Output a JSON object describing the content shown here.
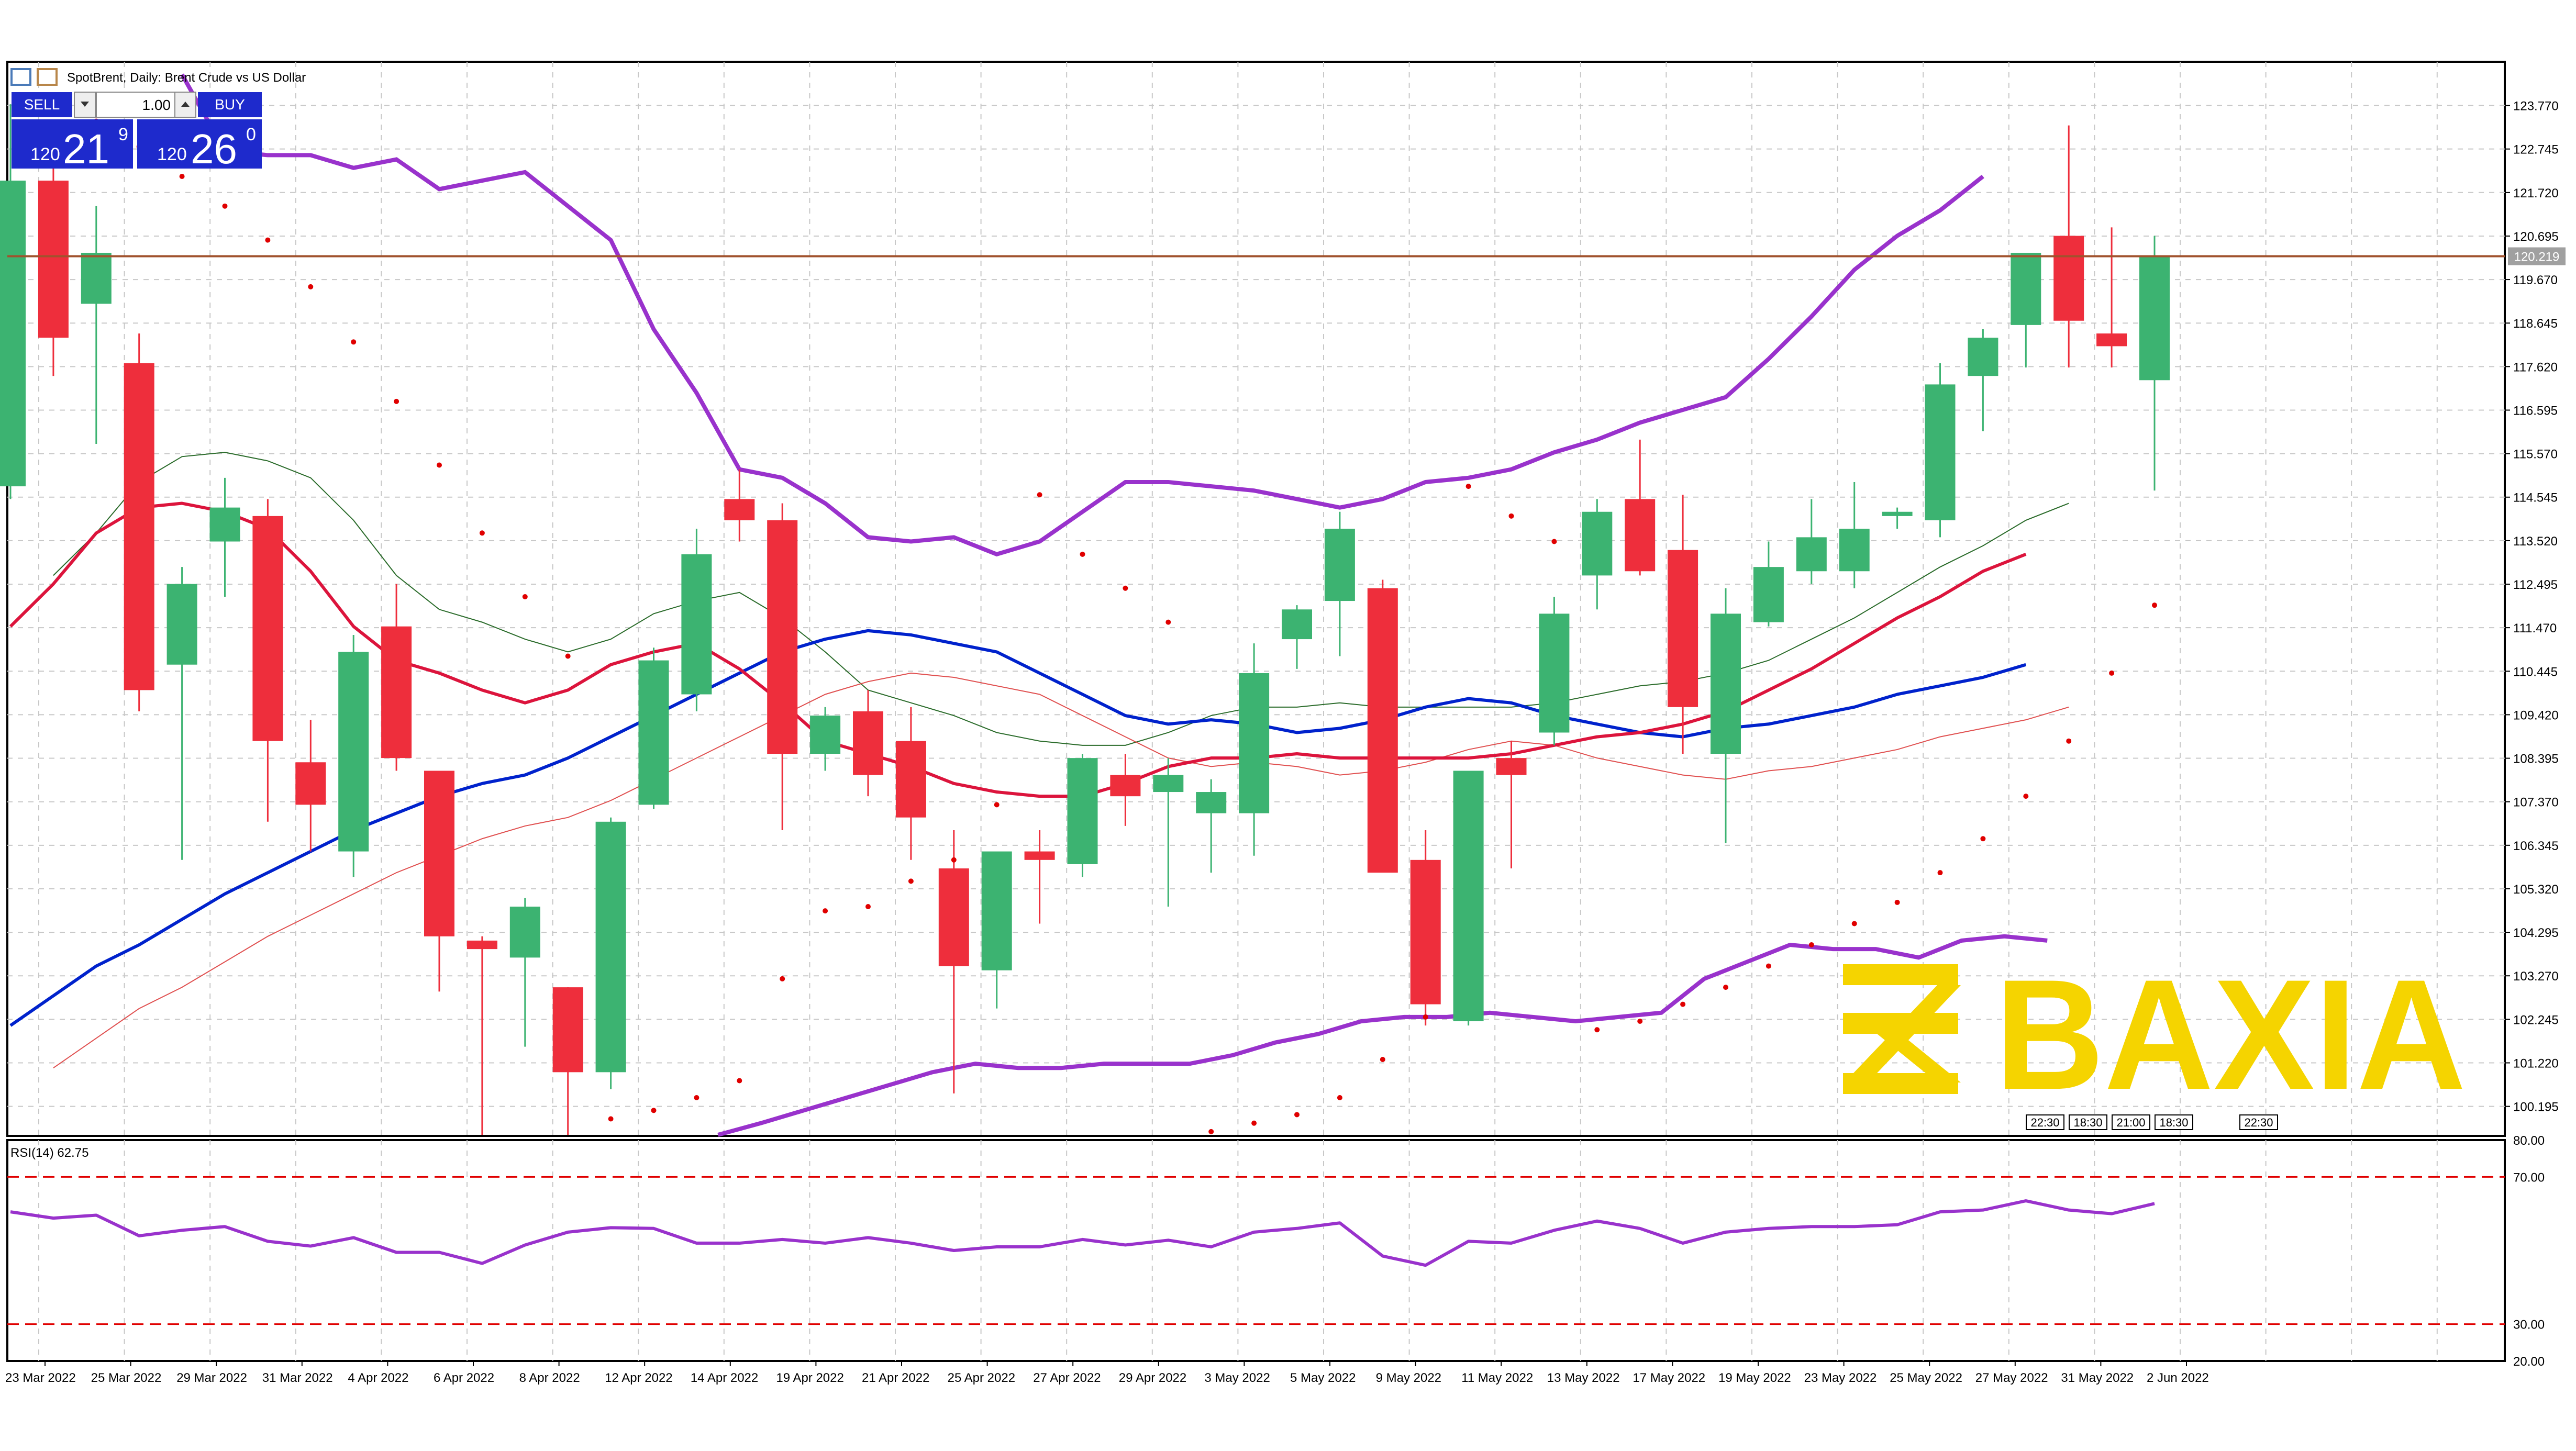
{
  "header": {
    "symbol_title": "SpotBrent, Daily:  Brent Crude vs US Dollar"
  },
  "trade_panel": {
    "sell_label": "SELL",
    "buy_label": "BUY",
    "lot_value": "1.00",
    "sell_price_big": "120",
    "sell_price_main": "21",
    "sell_price_sup": "9",
    "buy_price_big": "120",
    "buy_price_main": "26",
    "buy_price_sup": "0"
  },
  "price_axis": {
    "ticks": [
      "123.770",
      "122.745",
      "121.720",
      "120.695",
      "119.670",
      "118.645",
      "117.620",
      "116.595",
      "115.570",
      "114.545",
      "113.520",
      "112.495",
      "111.470",
      "110.445",
      "109.420",
      "108.395",
      "107.370",
      "106.345",
      "105.320",
      "104.295",
      "103.270",
      "102.245",
      "101.220",
      "100.195"
    ],
    "current_price_label": "120.219"
  },
  "rsi_panel": {
    "title": "RSI(14) 62.75",
    "ticks": [
      "80.00",
      "70.00",
      "30.00",
      "20.00"
    ]
  },
  "date_axis": {
    "labels": [
      "23 Mar 2022",
      "25 Mar 2022",
      "29 Mar 2022",
      "31 Mar 2022",
      "4 Apr 2022",
      "6 Apr 2022",
      "8 Apr 2022",
      "12 Apr 2022",
      "14 Apr 2022",
      "19 Apr 2022",
      "21 Apr 2022",
      "25 Apr 2022",
      "27 Apr 2022",
      "29 Apr 2022",
      "3 May 2022",
      "5 May 2022",
      "9 May 2022",
      "11 May 2022",
      "13 May 2022",
      "17 May 2022",
      "19 May 2022",
      "23 May 2022",
      "25 May 2022",
      "27 May 2022",
      "31 May 2022",
      "2 Jun 2022"
    ]
  },
  "session_labels": [
    "22:30",
    "18:30",
    "21:00",
    "18:30",
    "22:30"
  ],
  "watermark": {
    "text": "BAXIA",
    "color": "#f5d400"
  },
  "colors": {
    "bull": "#3cb371",
    "bear": "#ee2e3c",
    "ma_fast": "#dc143c",
    "ma_slow": "#0022cc",
    "envelope": "#9932cc",
    "psar": "#e00000",
    "current_line": "#a0522d",
    "rsi": "#9932cc",
    "rsi_level": "#e00000"
  },
  "chart_data": {
    "type": "candlestick",
    "title": "SpotBrent, Daily:  Brent Crude vs US Dollar",
    "ylim": [
      99.5,
      124.8
    ],
    "current_price": 120.219,
    "candles": [
      {
        "o": 114.8,
        "h": 123.8,
        "l": 114.5,
        "c": 122.0
      },
      {
        "o": 122.0,
        "h": 122.3,
        "l": 117.4,
        "c": 118.3
      },
      {
        "o": 119.1,
        "h": 121.4,
        "l": 115.8,
        "c": 120.3
      },
      {
        "o": 117.7,
        "h": 118.4,
        "l": 109.5,
        "c": 110.0
      },
      {
        "o": 110.6,
        "h": 112.9,
        "l": 106.0,
        "c": 112.5
      },
      {
        "o": 113.5,
        "h": 115.0,
        "l": 112.2,
        "c": 114.3
      },
      {
        "o": 114.1,
        "h": 114.5,
        "l": 106.9,
        "c": 108.8
      },
      {
        "o": 108.3,
        "h": 109.3,
        "l": 106.2,
        "c": 107.3
      },
      {
        "o": 106.2,
        "h": 111.3,
        "l": 105.6,
        "c": 110.9
      },
      {
        "o": 111.5,
        "h": 112.5,
        "l": 108.1,
        "c": 108.4
      },
      {
        "o": 108.1,
        "h": 108.1,
        "l": 102.9,
        "c": 104.2
      },
      {
        "o": 104.1,
        "h": 104.2,
        "l": 99.5,
        "c": 103.9
      },
      {
        "o": 103.7,
        "h": 105.1,
        "l": 101.6,
        "c": 104.9
      },
      {
        "o": 103.0,
        "h": 103.0,
        "l": 99.5,
        "c": 101.0
      },
      {
        "o": 101.0,
        "h": 107.0,
        "l": 100.6,
        "c": 106.9
      },
      {
        "o": 107.3,
        "h": 111.0,
        "l": 107.2,
        "c": 110.7
      },
      {
        "o": 109.9,
        "h": 113.8,
        "l": 109.5,
        "c": 113.2
      },
      {
        "o": 114.5,
        "h": 115.2,
        "l": 113.5,
        "c": 114.0
      },
      {
        "o": 114.0,
        "h": 114.4,
        "l": 106.7,
        "c": 108.5
      },
      {
        "o": 108.5,
        "h": 109.6,
        "l": 108.1,
        "c": 109.4
      },
      {
        "o": 109.5,
        "h": 110.0,
        "l": 107.5,
        "c": 108.0
      },
      {
        "o": 108.8,
        "h": 109.6,
        "l": 106.0,
        "c": 107.0
      },
      {
        "o": 105.8,
        "h": 106.7,
        "l": 100.5,
        "c": 103.5
      },
      {
        "o": 103.4,
        "h": 106.1,
        "l": 102.5,
        "c": 106.2
      },
      {
        "o": 106.2,
        "h": 106.7,
        "l": 104.5,
        "c": 106.0
      },
      {
        "o": 105.9,
        "h": 108.5,
        "l": 105.6,
        "c": 108.4
      },
      {
        "o": 108.0,
        "h": 108.5,
        "l": 106.8,
        "c": 107.5
      },
      {
        "o": 107.6,
        "h": 108.4,
        "l": 104.9,
        "c": 108.0
      },
      {
        "o": 107.1,
        "h": 107.9,
        "l": 105.7,
        "c": 107.6
      },
      {
        "o": 107.1,
        "h": 111.1,
        "l": 106.1,
        "c": 110.4
      },
      {
        "o": 111.2,
        "h": 112.0,
        "l": 110.5,
        "c": 111.9
      },
      {
        "o": 112.1,
        "h": 114.2,
        "l": 110.8,
        "c": 113.8
      },
      {
        "o": 112.4,
        "h": 112.6,
        "l": 105.8,
        "c": 105.7
      },
      {
        "o": 106.0,
        "h": 106.7,
        "l": 102.1,
        "c": 102.6
      },
      {
        "o": 102.2,
        "h": 108.1,
        "l": 102.1,
        "c": 108.1
      },
      {
        "o": 108.4,
        "h": 108.8,
        "l": 105.8,
        "c": 108.0
      },
      {
        "o": 109.0,
        "h": 112.2,
        "l": 108.7,
        "c": 111.8
      },
      {
        "o": 112.7,
        "h": 114.5,
        "l": 111.9,
        "c": 114.2
      },
      {
        "o": 114.5,
        "h": 115.9,
        "l": 112.7,
        "c": 112.8
      },
      {
        "o": 113.3,
        "h": 114.6,
        "l": 108.5,
        "c": 109.6
      },
      {
        "o": 108.5,
        "h": 112.4,
        "l": 106.4,
        "c": 111.8
      },
      {
        "o": 111.6,
        "h": 113.5,
        "l": 111.5,
        "c": 112.9
      },
      {
        "o": 112.8,
        "h": 114.5,
        "l": 112.5,
        "c": 113.6
      },
      {
        "o": 112.8,
        "h": 114.9,
        "l": 112.4,
        "c": 113.8
      },
      {
        "o": 114.1,
        "h": 114.3,
        "l": 113.8,
        "c": 114.2
      },
      {
        "o": 114.0,
        "h": 117.7,
        "l": 113.6,
        "c": 117.2
      },
      {
        "o": 117.4,
        "h": 118.5,
        "l": 116.1,
        "c": 118.3
      },
      {
        "o": 118.6,
        "h": 120.3,
        "l": 117.6,
        "c": 120.3
      },
      {
        "o": 120.7,
        "h": 123.3,
        "l": 117.6,
        "c": 118.7
      },
      {
        "o": 118.4,
        "h": 120.9,
        "l": 117.6,
        "c": 118.1
      },
      {
        "o": 117.3,
        "h": 120.7,
        "l": 114.7,
        "c": 120.2
      }
    ],
    "ma_fast": [
      111.5,
      112.5,
      113.7,
      114.3,
      114.4,
      114.2,
      113.8,
      112.8,
      111.5,
      110.7,
      110.4,
      110.0,
      109.7,
      110.0,
      110.6,
      110.9,
      111.1,
      110.5,
      109.7,
      108.8,
      108.5,
      108.2,
      107.8,
      107.6,
      107.5,
      107.5,
      107.8,
      108.2,
      108.4,
      108.4,
      108.5,
      108.4,
      108.4,
      108.4,
      108.4,
      108.5,
      108.7,
      108.9,
      109.0,
      109.2,
      109.5,
      110.0,
      110.5,
      111.1,
      111.7,
      112.2,
      112.8,
      113.2
    ],
    "ma_slow": [
      102.1,
      102.8,
      103.5,
      104.0,
      104.6,
      105.2,
      105.7,
      106.2,
      106.7,
      107.1,
      107.5,
      107.8,
      108.0,
      108.4,
      108.9,
      109.4,
      109.9,
      110.4,
      110.9,
      111.2,
      111.4,
      111.3,
      111.1,
      110.9,
      110.4,
      109.9,
      109.4,
      109.2,
      109.3,
      109.2,
      109.0,
      109.1,
      109.3,
      109.6,
      109.8,
      109.7,
      109.4,
      109.2,
      109.0,
      108.9,
      109.1,
      109.2,
      109.4,
      109.6,
      109.9,
      110.1,
      110.3,
      110.6
    ],
    "envelope_upper": [
      124.5,
      122.7,
      122.6,
      122.6,
      122.3,
      122.5,
      121.8,
      122.0,
      122.2,
      121.4,
      120.6,
      118.5,
      117.0,
      115.2,
      115.0,
      114.4,
      113.6,
      113.5,
      113.6,
      113.2,
      113.5,
      114.2,
      114.9,
      114.9,
      114.8,
      114.7,
      114.5,
      114.3,
      114.5,
      114.9,
      115.0,
      115.2,
      115.6,
      115.9,
      116.3,
      116.6,
      116.9,
      117.8,
      118.8,
      119.9,
      120.7,
      121.3,
      122.1
    ],
    "envelope_lower": [
      99.5,
      99.8,
      100.1,
      100.4,
      100.7,
      101.0,
      101.2,
      101.1,
      101.1,
      101.2,
      101.2,
      101.2,
      101.4,
      101.7,
      101.9,
      102.2,
      102.3,
      102.3,
      102.4,
      102.3,
      102.2,
      102.3,
      102.4,
      103.2,
      103.6,
      104.0,
      103.9,
      103.9,
      103.7,
      104.1,
      104.2,
      104.1
    ],
    "psar": [
      {
        "i": 1,
        "v": 124.0
      },
      {
        "i": 2,
        "v": 123.4
      },
      {
        "i": 3,
        "v": 122.8
      },
      {
        "i": 4,
        "v": 122.1
      },
      {
        "i": 5,
        "v": 121.4
      },
      {
        "i": 6,
        "v": 120.6
      },
      {
        "i": 7,
        "v": 119.5
      },
      {
        "i": 8,
        "v": 118.2
      },
      {
        "i": 9,
        "v": 116.8
      },
      {
        "i": 10,
        "v": 115.3
      },
      {
        "i": 11,
        "v": 113.7
      },
      {
        "i": 12,
        "v": 112.2
      },
      {
        "i": 13,
        "v": 110.8
      },
      {
        "i": 14,
        "v": 99.9
      },
      {
        "i": 15,
        "v": 100.1
      },
      {
        "i": 16,
        "v": 100.4
      },
      {
        "i": 17,
        "v": 100.8
      },
      {
        "i": 18,
        "v": 103.2
      },
      {
        "i": 19,
        "v": 104.8
      },
      {
        "i": 20,
        "v": 104.9
      },
      {
        "i": 21,
        "v": 105.5
      },
      {
        "i": 22,
        "v": 106.0
      },
      {
        "i": 23,
        "v": 107.3
      },
      {
        "i": 24,
        "v": 114.6
      },
      {
        "i": 25,
        "v": 113.2
      },
      {
        "i": 26,
        "v": 112.4
      },
      {
        "i": 27,
        "v": 111.6
      },
      {
        "i": 28,
        "v": 99.6
      },
      {
        "i": 29,
        "v": 99.8
      },
      {
        "i": 30,
        "v": 100.0
      },
      {
        "i": 31,
        "v": 100.4
      },
      {
        "i": 32,
        "v": 101.3
      },
      {
        "i": 33,
        "v": 102.3
      },
      {
        "i": 34,
        "v": 114.8
      },
      {
        "i": 35,
        "v": 114.1
      },
      {
        "i": 36,
        "v": 113.5
      },
      {
        "i": 37,
        "v": 102.0
      },
      {
        "i": 38,
        "v": 102.2
      },
      {
        "i": 39,
        "v": 102.6
      },
      {
        "i": 40,
        "v": 103.0
      },
      {
        "i": 41,
        "v": 103.5
      },
      {
        "i": 42,
        "v": 104.0
      },
      {
        "i": 43,
        "v": 104.5
      },
      {
        "i": 44,
        "v": 105.0
      },
      {
        "i": 45,
        "v": 105.7
      },
      {
        "i": 46,
        "v": 106.5
      },
      {
        "i": 47,
        "v": 107.5
      },
      {
        "i": 48,
        "v": 108.8
      },
      {
        "i": 49,
        "v": 110.4
      },
      {
        "i": 50,
        "v": 112.0
      }
    ],
    "rsi": [
      60.5,
      58.8,
      59.6,
      54.0,
      55.5,
      56.5,
      52.5,
      51.2,
      53.5,
      49.5,
      49.5,
      46.5,
      51.5,
      55.0,
      56.2,
      56.0,
      52.0,
      52.0,
      53.0,
      52.0,
      53.5,
      52.0,
      50.0,
      51.0,
      51.0,
      53.0,
      51.5,
      52.8,
      51.0,
      55.0,
      56.0,
      57.5,
      48.5,
      46.0,
      52.5,
      52.0,
      55.5,
      58.0,
      56.0,
      52.0,
      55.0,
      56.0,
      56.5,
      56.5,
      57.0,
      60.5,
      61.0,
      63.5,
      61.0,
      60.0,
      62.75
    ],
    "rsi_levels": [
      70,
      30
    ],
    "rsi_ylim": [
      20,
      80
    ]
  }
}
